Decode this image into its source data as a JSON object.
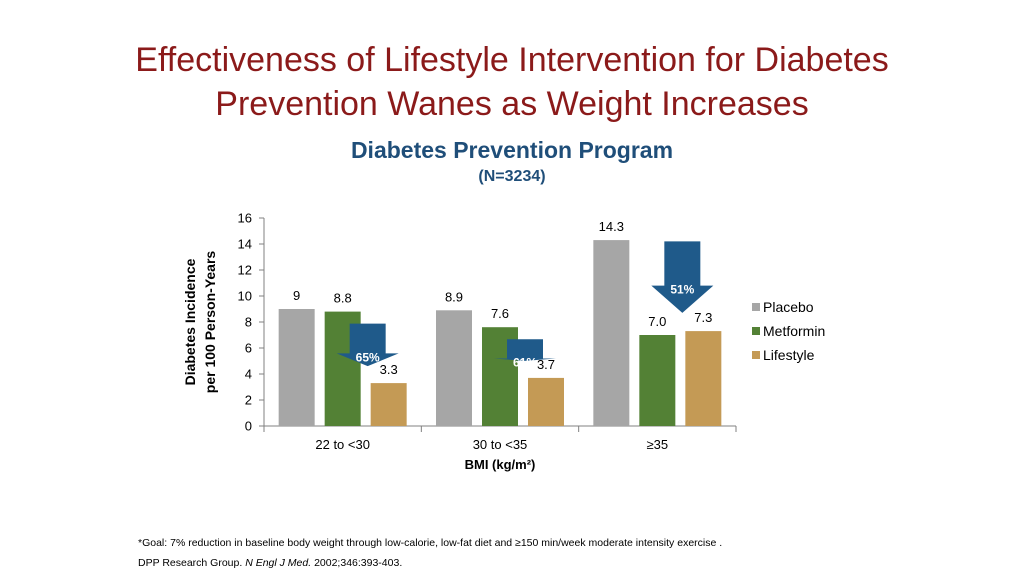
{
  "slide": {
    "title_line1": "Effectiveness of Lifestyle Intervention for Diabetes",
    "title_line2": "Prevention Wanes as Weight Increases"
  },
  "chart_data": {
    "type": "bar",
    "title": "Diabetes Prevention Program",
    "subtitle": "(N=3234)",
    "ylabel_line1": "Diabetes Incidence",
    "ylabel_line2": "per 100 Person-Years",
    "xlabel": "BMI (kg/m²)",
    "categories": [
      "22 to <30",
      "30 to <35",
      "≥35"
    ],
    "ylim": [
      0,
      16
    ],
    "yticks": [
      0,
      2,
      4,
      6,
      8,
      10,
      12,
      14,
      16
    ],
    "grid": false,
    "legend_position": "right",
    "series": [
      {
        "name": "Placebo",
        "color": "#a6a6a6",
        "values": [
          9,
          8.9,
          14.3
        ],
        "labels": [
          "9",
          "8.9",
          "14.3"
        ]
      },
      {
        "name": "Metformin",
        "color": "#538135",
        "values": [
          8.8,
          7.6,
          7.0
        ],
        "labels": [
          "8.8",
          "7.6",
          "7.0"
        ]
      },
      {
        "name": "Lifestyle",
        "color": "#c49a55",
        "values": [
          3.3,
          3.7,
          7.3
        ],
        "labels": [
          "3.3",
          "3.7",
          "7.3"
        ]
      }
    ],
    "reduction_arrows": [
      {
        "category": "22 to <30",
        "label": "65%"
      },
      {
        "category": "30 to <35",
        "label": "61%"
      },
      {
        "category": "≥35",
        "label": "51%"
      }
    ],
    "arrow_color": "#1f5a8a"
  },
  "footnotes": {
    "goal": "*Goal: 7% reduction in baseline body weight through low-calorie, low-fat diet and ≥150 min/week moderate intensity exercise .",
    "ref_prefix": "DPP Research Group. ",
    "ref_journal": "N Engl J Med.",
    "ref_suffix": " 2002;346:393-403."
  }
}
